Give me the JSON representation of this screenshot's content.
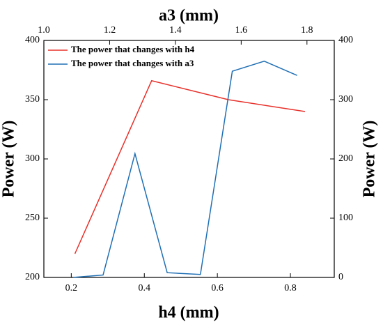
{
  "chart_data": {
    "type": "line",
    "xlabel": "h4 (mm)",
    "x2label": "a3 (mm)",
    "ylabel": "Power (W)",
    "y2label": "Power (W)",
    "xlim": [
      0.125,
      0.92
    ],
    "xticks": [
      0.2,
      0.4,
      0.6,
      0.8
    ],
    "x2lim": [
      1.0,
      1.883
    ],
    "x2ticks": [
      {
        "value": 1.0,
        "label": "1.0"
      },
      1.2,
      1.4,
      1.6,
      1.8
    ],
    "ylim": [
      200,
      400
    ],
    "yticks": [
      200,
      250,
      300,
      350,
      400
    ],
    "y2lim": [
      0,
      400
    ],
    "y2ticks": [
      0,
      100,
      200,
      300,
      400
    ],
    "legend": "upper left",
    "series": [
      {
        "name": "The power that changes with h4",
        "color": "#e8302a",
        "x": [
          0.21,
          0.42,
          0.63,
          0.84
        ],
        "values": [
          220,
          366,
          350,
          340
        ]
      },
      {
        "name": "The power that changes with a3",
        "color": "#1f6fb4",
        "axis": "y2",
        "x_axis": "x2",
        "x": [
          1.089,
          1.18,
          1.277,
          1.375,
          1.476,
          1.573,
          1.67,
          1.77
        ],
        "values": [
          0,
          4,
          209,
          8,
          5,
          348,
          365,
          341
        ]
      }
    ]
  }
}
